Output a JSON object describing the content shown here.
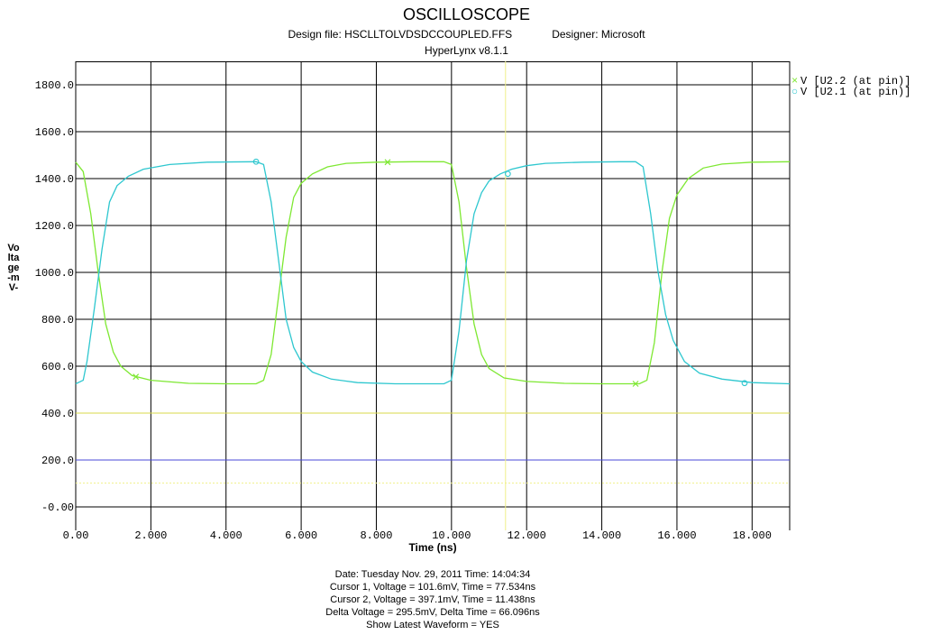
{
  "header": {
    "title": "OSCILLOSCOPE",
    "design_file": "Design file: HSCLLTOLVDSDCCOUPLED.FFS",
    "designer": "Designer: Microsoft",
    "version": "HyperLynx v8.1.1"
  },
  "footer": {
    "date_line": "Date: Tuesday Nov. 29, 2011   Time: 14:04:34",
    "cursor1": "Cursor 1, Voltage = 101.6mV, Time = 77.534ns",
    "cursor2": "Cursor 2, Voltage = 397.1mV, Time = 11.438ns",
    "delta": "Delta Voltage = 295.5mV,   Delta Time = 66.096ns",
    "show_latest": "Show Latest Waveform = YES"
  },
  "colors": {
    "series_green": "#7ee832",
    "series_cyan": "#2ec7cf",
    "ref_yellow": "#d9d94a",
    "ref_blue": "#4a4ad9",
    "cursor_yellow": "#f0f08a",
    "grid": "#000000"
  },
  "chart_data": {
    "type": "line",
    "title": "OSCILLOSCOPE",
    "xlabel": "Time  (ns)",
    "ylabel": "Voltage -mV-",
    "xlim": [
      0,
      19.0
    ],
    "ylim": [
      -100,
      1900
    ],
    "x_ticks": [
      "0.00",
      "2.000",
      "4.000",
      "6.000",
      "8.000",
      "10.000",
      "12.000",
      "14.000",
      "16.000",
      "18.000"
    ],
    "x_tick_values": [
      0,
      2,
      4,
      6,
      8,
      10,
      12,
      14,
      16,
      18
    ],
    "y_ticks": [
      "-0.00",
      "200.0",
      "400.0",
      "600.0",
      "800.0",
      "1000.0",
      "1200.0",
      "1400.0",
      "1600.0",
      "1800.0"
    ],
    "y_tick_values": [
      0,
      200,
      400,
      600,
      800,
      1000,
      1200,
      1400,
      1600,
      1800
    ],
    "grid": true,
    "legend_position": "top-right",
    "series": [
      {
        "name": "V [U2.2 (at pin)]",
        "marker": "×",
        "color": "#7ee832",
        "marker_points": [
          [
            1.6,
            555
          ],
          [
            8.3,
            1470
          ],
          [
            14.9,
            525
          ]
        ],
        "x": [
          0,
          0.2,
          0.4,
          0.6,
          0.8,
          1.0,
          1.2,
          1.5,
          2.0,
          3.0,
          4.0,
          4.8,
          5.0,
          5.2,
          5.4,
          5.6,
          5.8,
          6.0,
          6.3,
          6.7,
          7.2,
          8.0,
          9.0,
          9.8,
          10.0,
          10.2,
          10.4,
          10.6,
          10.8,
          11.0,
          11.4,
          12.0,
          13.0,
          14.0,
          15.0,
          15.2,
          15.4,
          15.6,
          15.8,
          16.0,
          16.3,
          16.7,
          17.2,
          18.0,
          19.0
        ],
        "y": [
          1470,
          1430,
          1250,
          1000,
          780,
          660,
          600,
          560,
          540,
          527,
          525,
          525,
          540,
          650,
          900,
          1150,
          1320,
          1380,
          1420,
          1450,
          1465,
          1470,
          1472,
          1472,
          1460,
          1300,
          1020,
          780,
          650,
          590,
          550,
          535,
          527,
          525,
          525,
          540,
          700,
          1000,
          1230,
          1330,
          1400,
          1445,
          1462,
          1470,
          1472
        ]
      },
      {
        "name": "V [U2.1 (at pin)]",
        "marker": "○",
        "color": "#2ec7cf",
        "marker_points": [
          [
            4.8,
            1472
          ],
          [
            11.5,
            1420
          ],
          [
            17.8,
            528
          ]
        ],
        "x": [
          0,
          0.2,
          0.3,
          0.5,
          0.7,
          0.9,
          1.1,
          1.4,
          1.8,
          2.5,
          3.5,
          4.8,
          5.0,
          5.2,
          5.4,
          5.6,
          5.8,
          6.0,
          6.3,
          6.8,
          7.5,
          8.5,
          9.5,
          9.8,
          10.0,
          10.2,
          10.4,
          10.6,
          10.8,
          11.0,
          11.3,
          11.6,
          12.0,
          12.5,
          13.5,
          14.5,
          14.9,
          15.1,
          15.3,
          15.5,
          15.7,
          15.9,
          16.2,
          16.6,
          17.2,
          18.0,
          19.0
        ],
        "y": [
          525,
          540,
          620,
          850,
          1100,
          1300,
          1370,
          1410,
          1440,
          1460,
          1470,
          1472,
          1460,
          1300,
          1050,
          800,
          680,
          620,
          575,
          545,
          530,
          525,
          525,
          525,
          540,
          750,
          1050,
          1250,
          1340,
          1390,
          1420,
          1440,
          1455,
          1465,
          1470,
          1472,
          1472,
          1450,
          1250,
          1000,
          820,
          710,
          620,
          570,
          545,
          530,
          525
        ]
      }
    ],
    "reference_lines": [
      {
        "orientation": "horizontal",
        "value": 400,
        "color": "#d9d94a"
      },
      {
        "orientation": "horizontal",
        "value": 200,
        "color": "#4a4ad9"
      },
      {
        "orientation": "horizontal",
        "value": 101.6,
        "color": "#f0f08a",
        "style": "dotted"
      },
      {
        "orientation": "vertical",
        "value": 11.438,
        "color": "#f0f08a",
        "style": "solid"
      }
    ]
  }
}
